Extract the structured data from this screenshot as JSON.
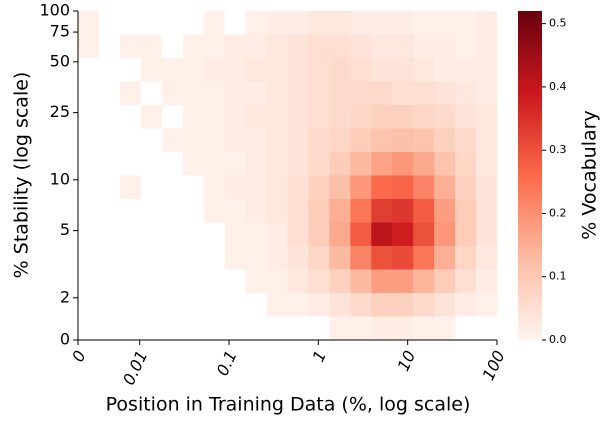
{
  "chart_data": {
    "type": "heatmap",
    "xlabel": "Position in Training Data (%, log scale)",
    "ylabel": "% Stability (log scale)",
    "colorbar_label": "% Vocabulary",
    "xscale": {
      "type": "symlog",
      "linthresh": 0.01,
      "linscale": 0.69
    },
    "yscale": {
      "type": "symlog",
      "linthresh": 2,
      "linscale": 0.25
    },
    "xlim": [
      0,
      100
    ],
    "ylim": [
      0,
      100
    ],
    "xticks": [
      0,
      0.01,
      0.1,
      1,
      10,
      100
    ],
    "yticks": [
      0,
      2,
      5,
      10,
      25,
      50,
      75,
      100
    ],
    "zlim": [
      0,
      0.52
    ],
    "zticks": [
      {
        "value": 0,
        "label": "0.0"
      },
      0.1,
      0.2,
      0.3,
      0.4,
      0.5
    ],
    "colormap": [
      "#fff5f0",
      "#fcbba1",
      "#fb6a4a",
      "#cb181d",
      "#67000d"
    ],
    "z": [
      [
        0.01,
        0,
        0,
        0,
        0,
        0,
        0.01,
        0,
        0.01,
        0.02,
        0.02,
        0.03,
        0.03,
        0.02,
        0.02,
        0.02,
        0.01,
        0.01,
        0.01,
        0.02
      ],
      [
        0.01,
        0,
        0.01,
        0.01,
        0,
        0.01,
        0.01,
        0.02,
        0.02,
        0.03,
        0.04,
        0.05,
        0.05,
        0.04,
        0.03,
        0.03,
        0.02,
        0.02,
        0.01,
        0.02
      ],
      [
        0,
        0,
        0,
        0.01,
        0.01,
        0.01,
        0.02,
        0.02,
        0.03,
        0.03,
        0.04,
        0.05,
        0.06,
        0.05,
        0.04,
        0.04,
        0.03,
        0.02,
        0.02,
        0.02
      ],
      [
        0,
        0,
        0.01,
        0,
        0.01,
        0.01,
        0.01,
        0.02,
        0.02,
        0.03,
        0.04,
        0.05,
        0.06,
        0.06,
        0.06,
        0.05,
        0.05,
        0.04,
        0.03,
        0.02
      ],
      [
        0,
        0,
        0,
        0.01,
        0,
        0.01,
        0.01,
        0.02,
        0.03,
        0.03,
        0.04,
        0.05,
        0.06,
        0.07,
        0.08,
        0.08,
        0.07,
        0.06,
        0.04,
        0.03
      ],
      [
        0,
        0,
        0,
        0,
        0.01,
        0.01,
        0.01,
        0.02,
        0.02,
        0.03,
        0.04,
        0.06,
        0.07,
        0.09,
        0.11,
        0.12,
        0.11,
        0.08,
        0.06,
        0.03
      ],
      [
        0,
        0,
        0,
        0,
        0,
        0.01,
        0.01,
        0.01,
        0.02,
        0.03,
        0.04,
        0.06,
        0.09,
        0.13,
        0.17,
        0.19,
        0.16,
        0.11,
        0.07,
        0.03
      ],
      [
        0,
        0,
        0.01,
        0,
        0,
        0,
        0.01,
        0.02,
        0.02,
        0.03,
        0.05,
        0.08,
        0.12,
        0.19,
        0.26,
        0.27,
        0.22,
        0.15,
        0.08,
        0.04
      ],
      [
        0,
        0,
        0,
        0,
        0,
        0,
        0.01,
        0.01,
        0.02,
        0.03,
        0.05,
        0.09,
        0.15,
        0.24,
        0.33,
        0.34,
        0.28,
        0.18,
        0.09,
        0.04
      ],
      [
        0,
        0,
        0,
        0,
        0,
        0,
        0,
        0.01,
        0.01,
        0.02,
        0.05,
        0.09,
        0.16,
        0.28,
        0.41,
        0.38,
        0.3,
        0.19,
        0.09,
        0.04
      ],
      [
        0,
        0,
        0,
        0,
        0,
        0,
        0,
        0.01,
        0.01,
        0.02,
        0.04,
        0.07,
        0.13,
        0.22,
        0.3,
        0.31,
        0.24,
        0.15,
        0.07,
        0.03
      ],
      [
        0,
        0,
        0,
        0,
        0,
        0,
        0,
        0,
        0.01,
        0.01,
        0.03,
        0.05,
        0.08,
        0.13,
        0.18,
        0.18,
        0.14,
        0.09,
        0.05,
        0.02
      ],
      [
        0,
        0,
        0,
        0,
        0,
        0,
        0,
        0,
        0,
        0.01,
        0.01,
        0.02,
        0.04,
        0.06,
        0.08,
        0.08,
        0.06,
        0.04,
        0.02,
        0.01
      ],
      [
        0,
        0,
        0,
        0,
        0,
        0,
        0,
        0,
        0,
        0,
        0,
        0,
        0.01,
        0.01,
        0.02,
        0.02,
        0.01,
        0.01,
        0,
        0
      ]
    ]
  }
}
